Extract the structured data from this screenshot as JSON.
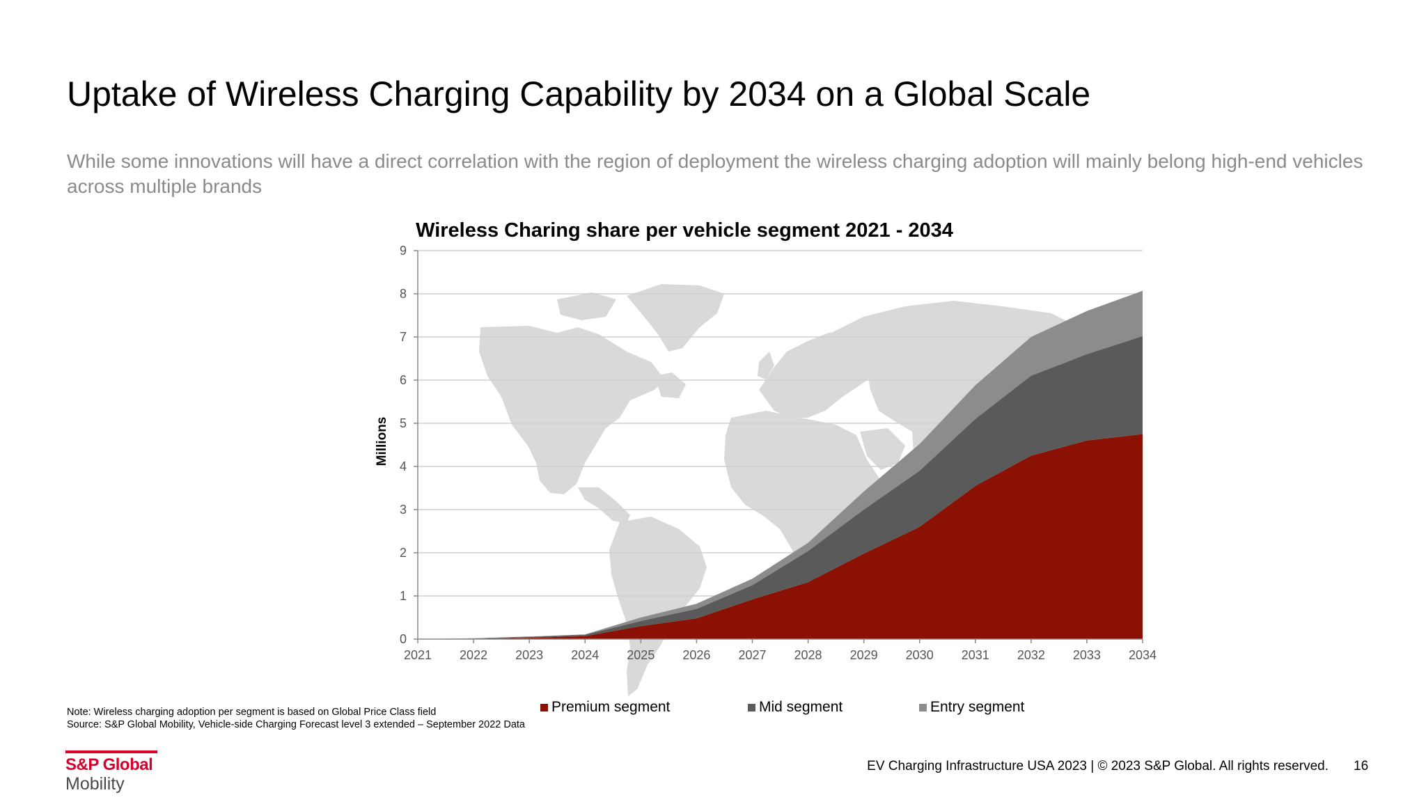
{
  "page": {
    "title": "Uptake of Wireless Charging Capability by 2034 on a Global Scale",
    "subtitle": "While some innovations will have a direct correlation with the region of deployment the wireless charging adoption will mainly belong high-end vehicles across multiple brands",
    "note": "Note: Wireless charging adoption per segment is based on Global Price Class field",
    "source": "Source: S&P Global Mobility, Vehicle-side Charging Forecast level 3 extended – September 2022 Data",
    "footer": "EV Charging Infrastructure USA 2023 | © 2023 S&P Global. All rights reserved.",
    "page_number": "16",
    "logo_top": "S&P Global",
    "logo_bottom": "Mobility",
    "background_graphic": "world-map-icon"
  },
  "chart_data": {
    "type": "area",
    "stacked": true,
    "title": "Wireless Charing share per vehicle segment 2021 - 2034",
    "xlabel": "",
    "ylabel": "Millions",
    "x": [
      "2021",
      "2022",
      "2023",
      "2024",
      "2025",
      "2026",
      "2027",
      "2028",
      "2029",
      "2030",
      "2031",
      "2032",
      "2033",
      "2034"
    ],
    "yticks": [
      "0",
      "1",
      "2",
      "3",
      "4",
      "5",
      "6",
      "7",
      "8",
      "9"
    ],
    "ylim": [
      0,
      9
    ],
    "grid": true,
    "legend": "bottom",
    "series": [
      {
        "name": "Premium segment",
        "color": "#8b1104",
        "values": [
          0,
          0.01,
          0.03,
          0.07,
          0.3,
          0.48,
          0.92,
          1.32,
          1.98,
          2.6,
          3.55,
          4.25,
          4.6,
          4.75
        ]
      },
      {
        "name": "Mid segment",
        "color": "#5a5a5a",
        "values": [
          0,
          0.005,
          0.02,
          0.03,
          0.12,
          0.22,
          0.33,
          0.72,
          1.02,
          1.3,
          1.55,
          1.85,
          2.0,
          2.27
        ]
      },
      {
        "name": "Entry segment",
        "color": "#8c8c8c",
        "values": [
          0,
          0.005,
          0.01,
          0.01,
          0.08,
          0.12,
          0.15,
          0.19,
          0.42,
          0.62,
          0.78,
          0.9,
          1.0,
          1.05
        ]
      }
    ]
  }
}
